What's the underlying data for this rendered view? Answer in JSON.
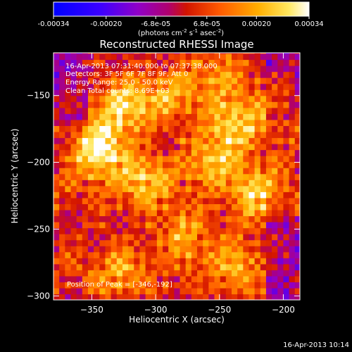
{
  "chart_data": {
    "type": "heatmap",
    "title": "Reconstructed RHESSI Image",
    "xlabel": "Heliocentric X (arcsec)",
    "ylabel": "Heliocentric Y (arcsec)",
    "xlim": [
      -380,
      -187
    ],
    "ylim": [
      -303,
      -118
    ],
    "x_ticks": [
      -350,
      -300,
      -250,
      -200
    ],
    "y_ticks": [
      -150,
      -200,
      -250,
      -300
    ],
    "colorbar": {
      "range": [
        -0.00034,
        0.00034
      ],
      "tick_values": [
        -0.00034,
        -0.0002,
        -6.8e-05,
        6.8e-05,
        0.0002,
        0.00034
      ],
      "tick_labels": [
        "-0.00034",
        "-0.00020",
        "-6.8e-05",
        "6.8e-05",
        "0.00020",
        "0.00034"
      ],
      "unit_main": "(photons cm",
      "unit_exp1": "-2",
      "unit_mid": " s",
      "unit_exp2": "-1",
      "unit_end": " asec",
      "unit_exp3": "-2",
      "unit_close": ")"
    },
    "annotations": [
      "16-Apr-2013 07:31:40.000 to 07:37:38.000",
      "Detectors: 3F 5F 6F 7F 8F 9F, Att 0",
      "Energy Range: 25.0 - 50.0 keV",
      "Clean     Total counts: 8.69E+03"
    ],
    "peak_label": "Position of Peak = [-346,-192]",
    "peak": [
      -346,
      -192
    ],
    "hot_spots": [
      {
        "x": -346,
        "y": -192,
        "value": 0.00034
      },
      {
        "x": -325,
        "y": -160,
        "value": 0.00022
      },
      {
        "x": -310,
        "y": -215,
        "value": 0.0002
      },
      {
        "x": -240,
        "y": -175,
        "value": 0.00024
      },
      {
        "x": -260,
        "y": -200,
        "value": 0.00018
      },
      {
        "x": -225,
        "y": -225,
        "value": 0.00022
      },
      {
        "x": -280,
        "y": -255,
        "value": 0.00016
      },
      {
        "x": -330,
        "y": -285,
        "value": 0.00014
      },
      {
        "x": -240,
        "y": -280,
        "value": 0.00016
      },
      {
        "x": -255,
        "y": -135,
        "value": 0.00014
      },
      {
        "x": -205,
        "y": -160,
        "value": 0.00012
      },
      {
        "x": -290,
        "y": -150,
        "value": 0.00014
      }
    ]
  },
  "timestamp": "16-Apr-2013 10:14"
}
